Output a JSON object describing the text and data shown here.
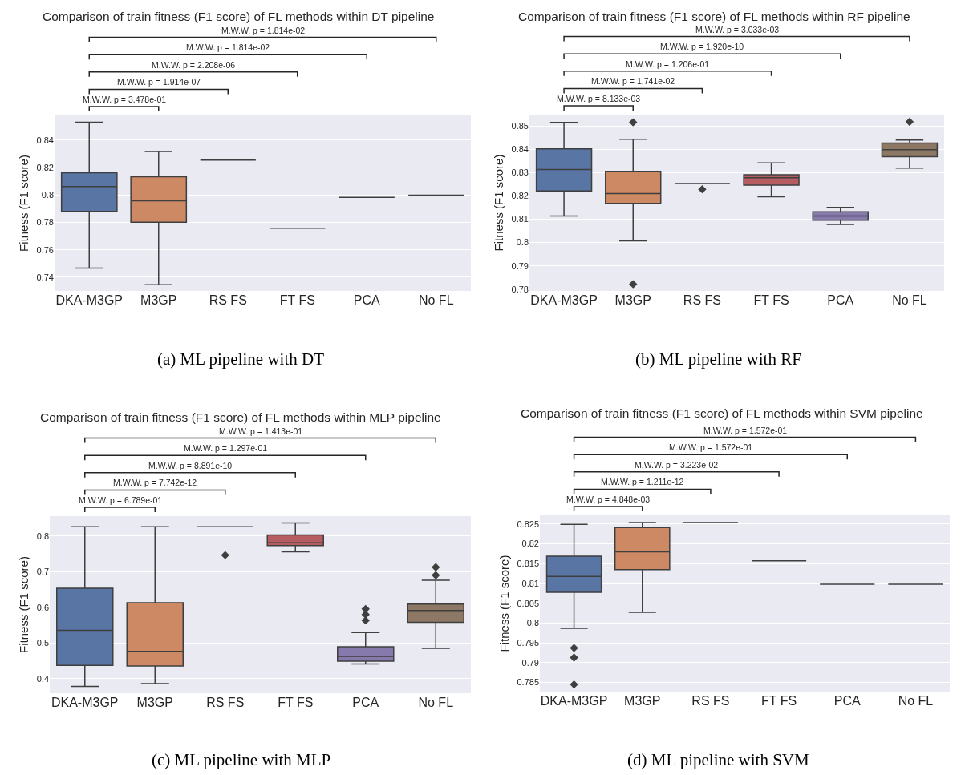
{
  "chart_data": [
    {
      "type": "box",
      "title": "Comparison of train fitness (F1 score) of FL methods within DT pipeline",
      "ylabel": "Fitness (F1 score)",
      "categories": [
        "DKA-M3GP",
        "M3GP",
        "RS FS",
        "FT FS",
        "PCA",
        "No FL"
      ],
      "colors": [
        "#5975a4",
        "#cc8963",
        "#3f3f3f",
        "#3f3f3f",
        "#3f3f3f",
        "#3f3f3f"
      ],
      "boxes": [
        {
          "low": 0.7467,
          "q1": 0.788,
          "median": 0.8061,
          "q3": 0.8162,
          "high": 0.853
        },
        {
          "low": 0.7346,
          "q1": 0.7801,
          "median": 0.7958,
          "q3": 0.8133,
          "high": 0.8317
        },
        {
          "low": 0.8254,
          "q1": 0.8254,
          "median": 0.8254,
          "q3": 0.8254,
          "high": 0.8254
        },
        {
          "low": 0.7757,
          "q1": 0.7757,
          "median": 0.7757,
          "q3": 0.7757,
          "high": 0.7757
        },
        {
          "low": 0.7983,
          "q1": 0.7983,
          "median": 0.7983,
          "q3": 0.7983,
          "high": 0.7983
        },
        {
          "low": 0.7999,
          "q1": 0.7999,
          "median": 0.7999,
          "q3": 0.7999,
          "high": 0.7999
        }
      ],
      "ylim": [
        0.73,
        0.858
      ],
      "yticks": [
        0.74,
        0.76,
        0.78,
        0.8,
        0.82,
        0.84
      ],
      "grid": "y",
      "marker": "diamond",
      "annotations": [
        "M.W.W. p = 3.478e-01",
        "M.W.W. p = 1.914e-07",
        "M.W.W. p = 2.208e-06",
        "M.W.W. p = 1.814e-02",
        "M.W.W. p = 1.814e-02",
        "(a) ML pipeline with DT"
      ]
    },
    {
      "type": "box",
      "title": "Comparison of train fitness (F1 score) of FL methods within RF pipeline",
      "ylabel": "Fitness (F1 score)",
      "categories": [
        "DKA-M3GP",
        "M3GP",
        "RS FS",
        "FT FS",
        "PCA",
        "No FL"
      ],
      "colors": [
        "#5975a4",
        "#cc8963",
        "#3f3f3f",
        "#b55d60",
        "#857aab",
        "#8d7866"
      ],
      "boxes": [
        {
          "low": 0.8114,
          "q1": 0.8222,
          "median": 0.8314,
          "q3": 0.8403,
          "high": 0.8516
        },
        {
          "low": 0.8007,
          "q1": 0.8168,
          "median": 0.8211,
          "q3": 0.8306,
          "high": 0.8444,
          "outliers": [
            0.8517,
            0.7821
          ]
        },
        {
          "low": 0.8254,
          "q1": 0.8254,
          "median": 0.8254,
          "q3": 0.8254,
          "high": 0.8254,
          "outliers": [
            0.8229
          ]
        },
        {
          "low": 0.8197,
          "q1": 0.8247,
          "median": 0.8279,
          "q3": 0.8292,
          "high": 0.8342
        },
        {
          "low": 0.8078,
          "q1": 0.8096,
          "median": 0.8114,
          "q3": 0.8132,
          "high": 0.8151
        },
        {
          "low": 0.832,
          "q1": 0.8369,
          "median": 0.8399,
          "q3": 0.8428,
          "high": 0.8441,
          "outliers": [
            0.8519
          ]
        }
      ],
      "ylim": [
        0.7792,
        0.855
      ],
      "yticks": [
        0.78,
        0.79,
        0.8,
        0.81,
        0.82,
        0.83,
        0.84,
        0.85
      ],
      "grid": "y",
      "marker": "diamond",
      "annotations": [
        "M.W.W. p = 8.133e-03",
        "M.W.W. p = 1.741e-02",
        "M.W.W. p = 1.206e-01",
        "M.W.W. p = 1.920e-10",
        "M.W.W. p = 3.033e-03",
        "(b) ML pipeline with RF"
      ]
    },
    {
      "type": "box",
      "title": "Comparison of train fitness (F1 score) of FL methods within MLP pipeline",
      "ylabel": "Fitness (F1 score)",
      "categories": [
        "DKA-M3GP",
        "M3GP",
        "RS FS",
        "FT FS",
        "PCA",
        "No FL"
      ],
      "colors": [
        "#5975a4",
        "#cc8963",
        "#3f3f3f",
        "#b55d60",
        "#857aab",
        "#8d7866"
      ],
      "boxes": [
        {
          "low": 0.378,
          "q1": 0.4373,
          "median": 0.5354,
          "q3": 0.6534,
          "high": 0.826
        },
        {
          "low": 0.3861,
          "q1": 0.4356,
          "median": 0.4764,
          "q3": 0.6126,
          "high": 0.826
        },
        {
          "low": 0.826,
          "q1": 0.826,
          "median": 0.826,
          "q3": 0.826,
          "high": 0.826,
          "outliers": [
            0.7462
          ]
        },
        {
          "low": 0.7558,
          "q1": 0.7731,
          "median": 0.7809,
          "q3": 0.8026,
          "high": 0.8364
        },
        {
          "low": 0.4408,
          "q1": 0.4486,
          "median": 0.4625,
          "q3": 0.4894,
          "high": 0.5293,
          "outliers": [
            0.5952,
            0.5796,
            0.5631
          ]
        },
        {
          "low": 0.485,
          "q1": 0.5579,
          "median": 0.5909,
          "q3": 0.6091,
          "high": 0.6759,
          "outliers": [
            0.7124,
            0.6898
          ]
        }
      ],
      "ylim": [
        0.359,
        0.8555
      ],
      "yticks": [
        0.4,
        0.5,
        0.6,
        0.7,
        0.8
      ],
      "grid": "y",
      "marker": "diamond",
      "annotations": [
        "M.W.W. p = 6.789e-01",
        "M.W.W. p = 7.742e-12",
        "M.W.W. p = 8.891e-10",
        "M.W.W. p = 1.297e-01",
        "M.W.W. p = 1.413e-01",
        "(c) ML pipeline with MLP"
      ]
    },
    {
      "type": "box",
      "title": "Comparison of train fitness (F1 score) of FL methods within SVM pipeline",
      "ylabel": "Fitness (F1 score)",
      "categories": [
        "DKA-M3GP",
        "M3GP",
        "RS FS",
        "FT FS",
        "PCA",
        "No FL"
      ],
      "colors": [
        "#5975a4",
        "#cc8963",
        "#3f3f3f",
        "#3f3f3f",
        "#3f3f3f",
        "#3f3f3f"
      ],
      "boxes": [
        {
          "low": 0.7987,
          "q1": 0.8078,
          "median": 0.8118,
          "q3": 0.8169,
          "high": 0.8249,
          "outliers": [
            0.7937,
            0.7913,
            0.7845
          ]
        },
        {
          "low": 0.8027,
          "q1": 0.8135,
          "median": 0.818,
          "q3": 0.8241,
          "high": 0.8254
        },
        {
          "low": 0.8254,
          "q1": 0.8254,
          "median": 0.8254,
          "q3": 0.8254,
          "high": 0.8254
        },
        {
          "low": 0.8157,
          "q1": 0.8157,
          "median": 0.8157,
          "q3": 0.8157,
          "high": 0.8157
        },
        {
          "low": 0.8098,
          "q1": 0.8098,
          "median": 0.8098,
          "q3": 0.8098,
          "high": 0.8098
        },
        {
          "low": 0.8098,
          "q1": 0.8098,
          "median": 0.8098,
          "q3": 0.8098,
          "high": 0.8098
        }
      ],
      "ylim": [
        0.7827,
        0.8272
      ],
      "yticks": [
        0.785,
        0.79,
        0.795,
        0.8,
        0.805,
        0.81,
        0.815,
        0.82,
        0.825
      ],
      "grid": "y",
      "marker": "diamond",
      "annotations": [
        "M.W.W. p = 4.848e-03",
        "M.W.W. p = 1.211e-12",
        "M.W.W. p = 3.223e-02",
        "M.W.W. p = 1.572e-01",
        "M.W.W. p = 1.572e-01",
        "(d) ML pipeline with SVM"
      ]
    }
  ]
}
